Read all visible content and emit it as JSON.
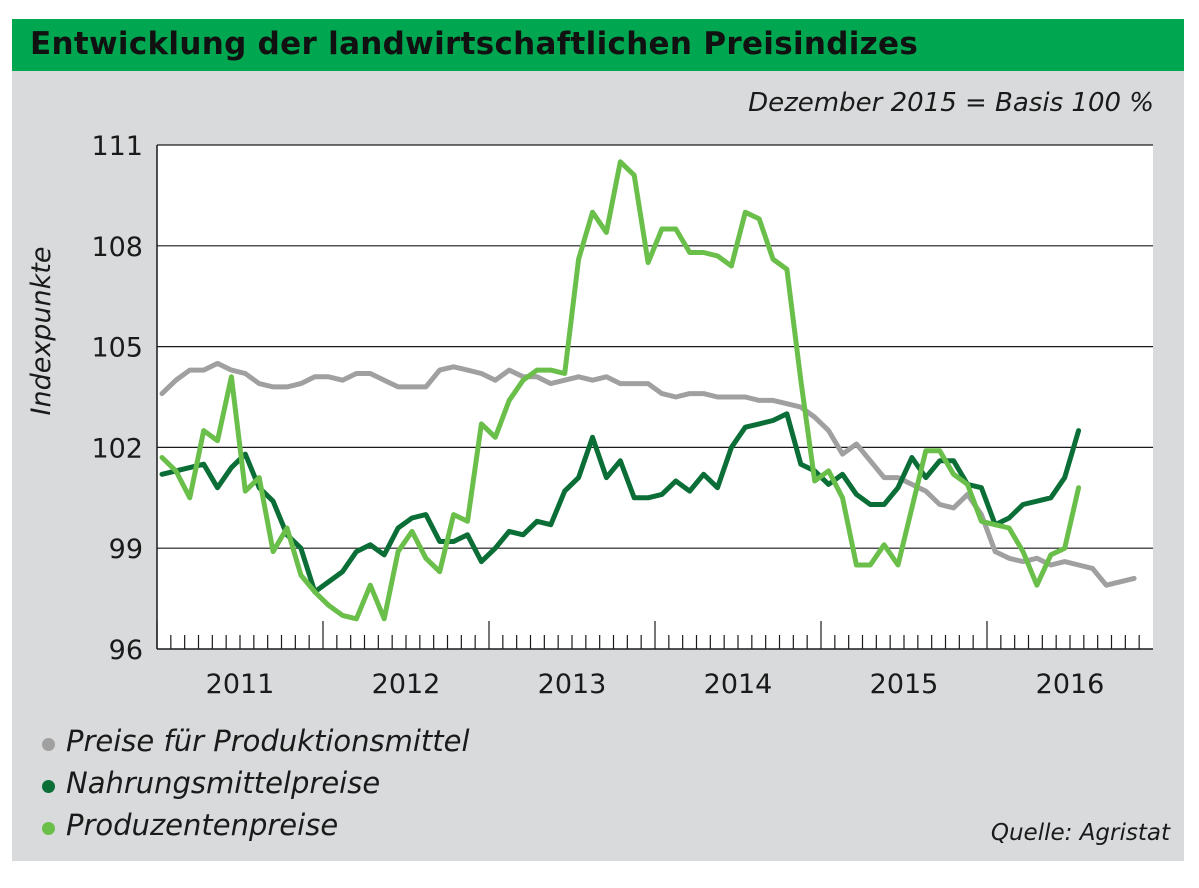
{
  "header": {
    "title": "Entwicklung der landwirtschaftlichen Preisindizes",
    "basis_note": "Dezember 2015 = Basis 100 %",
    "source": "Quelle: Agristat"
  },
  "colors": {
    "brand_green": "#00a650",
    "panel_bg": "#d9dadb",
    "plot_bg": "#ffffff",
    "series_gray": "#a0a0a0",
    "series_dark_green": "#0a6e36",
    "series_light_green": "#6abf4b"
  },
  "chart_data": {
    "type": "line",
    "title": "Entwicklung der landwirtschaftlichen Preisindizes",
    "subtitle": "Dezember 2015 = Basis 100 %",
    "xlabel": "",
    "ylabel": "Indexpunkte",
    "ylim": [
      96,
      111
    ],
    "yticks": [
      96,
      99,
      102,
      105,
      108,
      111
    ],
    "ytick_labels": [
      "96",
      "99",
      "102",
      "105",
      "108",
      "111"
    ],
    "xlim": [
      0,
      71
    ],
    "year_labels": [
      "2011",
      "2012",
      "2013",
      "2014",
      "2015",
      "2016"
    ],
    "grid": true,
    "legend_position": "bottom-left",
    "x_unit": "month index (0 = Jan 2011)",
    "series": [
      {
        "name": "Preise für Produktionsmittel",
        "color": "#a0a0a0",
        "values": [
          103.6,
          104.0,
          104.3,
          104.3,
          104.5,
          104.3,
          104.2,
          103.9,
          103.8,
          103.8,
          103.9,
          104.1,
          104.1,
          104.0,
          104.2,
          104.2,
          104.0,
          103.8,
          103.8,
          103.8,
          104.3,
          104.4,
          104.3,
          104.2,
          104.0,
          104.3,
          104.1,
          104.1,
          103.9,
          104.0,
          104.1,
          104.0,
          104.1,
          103.9,
          103.9,
          103.9,
          103.6,
          103.5,
          103.6,
          103.6,
          103.5,
          103.5,
          103.5,
          103.4,
          103.4,
          103.3,
          103.2,
          102.9,
          102.5,
          101.8,
          102.1,
          101.6,
          101.1,
          101.1,
          100.9,
          100.7,
          100.3,
          100.2,
          100.6,
          100.0,
          98.9,
          98.7,
          98.6,
          98.7,
          98.5,
          98.6,
          98.5,
          98.4,
          97.9,
          98.0,
          98.1
        ]
      },
      {
        "name": "Nahrungsmittelpreise",
        "color": "#0a6e36",
        "values": [
          101.2,
          101.3,
          101.4,
          101.5,
          100.8,
          101.4,
          101.8,
          100.8,
          100.4,
          99.4,
          99.0,
          97.7,
          98.0,
          98.3,
          98.9,
          99.1,
          98.8,
          99.6,
          99.9,
          100.0,
          99.2,
          99.2,
          99.4,
          98.6,
          99.0,
          99.5,
          99.4,
          99.8,
          99.7,
          100.7,
          101.1,
          102.3,
          101.1,
          101.6,
          100.5,
          100.5,
          100.6,
          101.0,
          100.7,
          101.2,
          100.8,
          102.0,
          102.6,
          102.7,
          102.8,
          103.0,
          101.5,
          101.3,
          100.9,
          101.2,
          100.6,
          100.3,
          100.3,
          100.8,
          101.7,
          101.1,
          101.6,
          101.6,
          100.9,
          100.8,
          99.7,
          99.9,
          100.3,
          100.4,
          100.5,
          101.1,
          102.5
        ]
      },
      {
        "name": "Produzentenpreise",
        "color": "#6abf4b",
        "values": [
          101.7,
          101.3,
          100.5,
          102.5,
          102.2,
          104.1,
          100.7,
          101.1,
          98.9,
          99.6,
          98.2,
          97.7,
          97.3,
          97.0,
          96.9,
          97.9,
          96.9,
          98.9,
          99.5,
          98.7,
          98.3,
          100.0,
          99.8,
          102.7,
          102.3,
          103.4,
          104.0,
          104.3,
          104.3,
          104.2,
          107.6,
          109.0,
          108.4,
          110.5,
          110.1,
          107.5,
          108.5,
          108.5,
          107.8,
          107.8,
          107.7,
          107.4,
          109.0,
          108.8,
          107.6,
          107.3,
          104.0,
          101.0,
          101.3,
          100.5,
          98.5,
          98.5,
          99.1,
          98.5,
          100.2,
          101.9,
          101.9,
          101.2,
          100.9,
          99.8,
          99.7,
          99.6,
          98.9,
          97.9,
          98.8,
          99.0,
          100.8
        ]
      }
    ]
  }
}
